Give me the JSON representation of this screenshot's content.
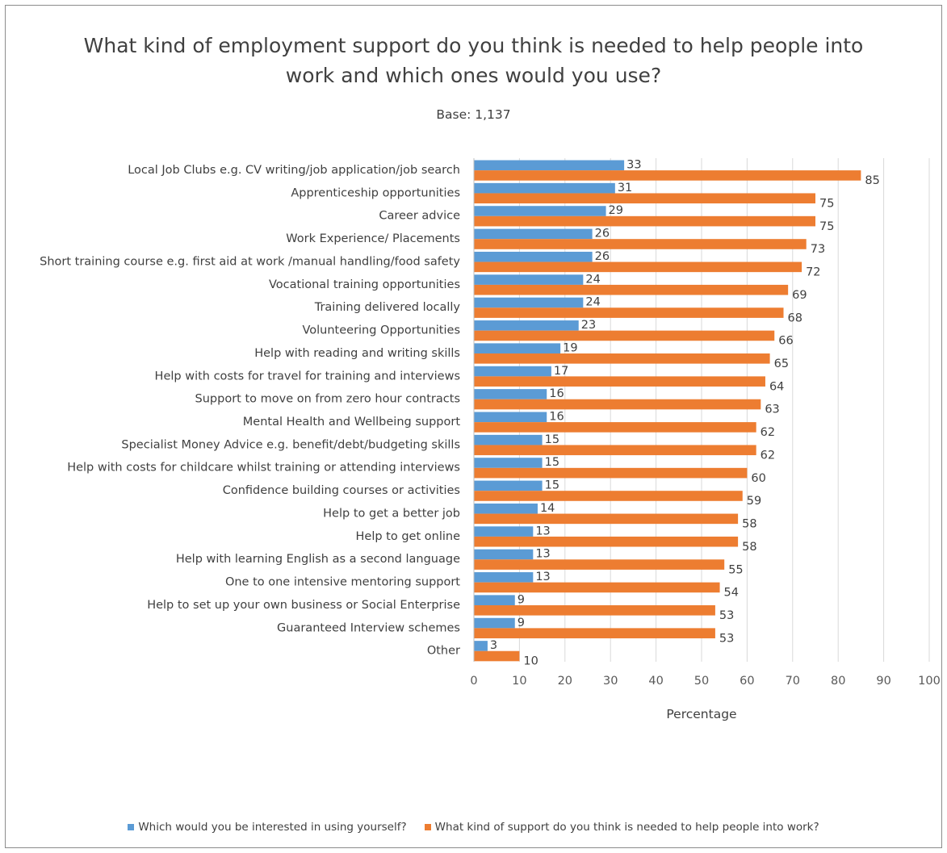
{
  "chart_data": {
    "type": "bar",
    "orientation": "horizontal",
    "title": "What kind of employment support do you think is needed to help people into\nwork and which ones would you use?",
    "subtitle": "Base: 1,137",
    "xlabel": "Percentage",
    "ylabel": "",
    "xlim": [
      0,
      100
    ],
    "xticks": [
      0,
      10,
      20,
      30,
      40,
      50,
      60,
      70,
      80,
      90,
      100
    ],
    "grid": "vertical",
    "legend_position": "bottom",
    "categories": [
      "Local Job Clubs e.g. CV writing/job application/job search",
      "Apprenticeship opportunities",
      "Career advice",
      "Work Experience/ Placements",
      "Short training course e.g. first aid at work /manual handling/food safety",
      "Vocational training opportunities",
      "Training delivered locally",
      "Volunteering Opportunities",
      "Help with reading and writing skills",
      "Help with costs for travel for training and interviews",
      "Support to move on from zero hour contracts",
      "Mental Health and Wellbeing support",
      "Specialist Money Advice e.g. benefit/debt/budgeting skills",
      "Help with costs for childcare whilst training or attending interviews",
      "Confidence building courses or activities",
      "Help to get a better job",
      "Help to get online",
      "Help with learning English as a second language",
      "One to one intensive mentoring support",
      "Help to set up your own business or Social Enterprise",
      "Guaranteed Interview schemes",
      "Other"
    ],
    "series": [
      {
        "name": "Which would you be interested in using yourself?",
        "color": "#5b9bd5",
        "values": [
          33,
          31,
          29,
          26,
          26,
          24,
          24,
          23,
          19,
          17,
          16,
          16,
          15,
          15,
          15,
          14,
          13,
          13,
          13,
          9,
          9,
          3
        ]
      },
      {
        "name": "What kind of support do you think is needed to help people into work?",
        "color": "#ed7d31",
        "values": [
          85,
          75,
          75,
          73,
          72,
          69,
          68,
          66,
          65,
          64,
          63,
          62,
          62,
          60,
          59,
          58,
          58,
          55,
          54,
          53,
          53,
          10
        ]
      }
    ]
  }
}
